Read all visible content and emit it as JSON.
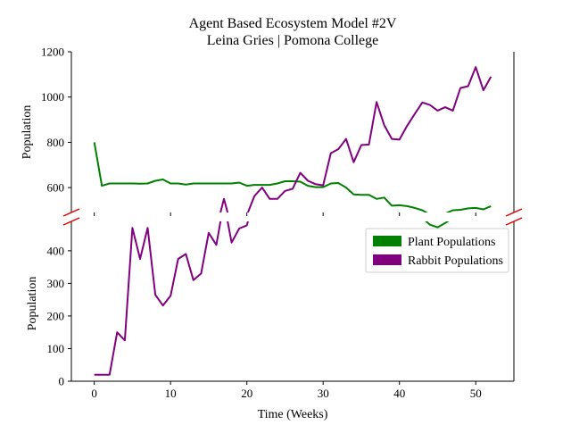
{
  "chart_data": {
    "type": "line",
    "title": "Agent Based Ecosystem Model #2V",
    "subtitle": "Leina Gries | Pomona College",
    "xlabel": "Time (Weeks)",
    "ylabel_top": "Population",
    "ylabel_bottom": "Population",
    "broken_axis": true,
    "xlim": [
      -3,
      55
    ],
    "x_ticks": [
      0,
      10,
      20,
      30,
      40,
      50
    ],
    "top_ylim": [
      490,
      1200
    ],
    "top_y_ticks": [
      600,
      800,
      1000,
      1200
    ],
    "bottom_ylim": [
      0,
      490
    ],
    "bottom_y_ticks": [
      0,
      100,
      200,
      300,
      400
    ],
    "legend_position": "upper-right of lower panel",
    "x": [
      0,
      1,
      2,
      3,
      4,
      5,
      6,
      7,
      8,
      9,
      10,
      11,
      12,
      13,
      14,
      15,
      16,
      17,
      18,
      19,
      20,
      21,
      22,
      23,
      24,
      25,
      26,
      27,
      28,
      29,
      30,
      31,
      32,
      33,
      34,
      35,
      36,
      37,
      38,
      39,
      40,
      41,
      42,
      43,
      44,
      45,
      46,
      47,
      48,
      49,
      50,
      51,
      52
    ],
    "series": [
      {
        "name": "Plant Populations",
        "color": "#008000",
        "values": [
          800,
          608,
          618,
          618,
          618,
          618,
          617,
          618,
          630,
          636,
          618,
          618,
          613,
          618,
          618,
          618,
          618,
          618,
          618,
          622,
          608,
          612,
          612,
          612,
          618,
          628,
          628,
          626,
          608,
          602,
          602,
          618,
          620,
          600,
          570,
          568,
          568,
          550,
          556,
          520,
          522,
          518,
          510,
          500,
          480,
          472,
          485,
          500,
          502,
          508,
          510,
          504,
          518
        ]
      },
      {
        "name": "Rabbit Populations",
        "color": "#800080",
        "values": [
          20,
          20,
          20,
          150,
          125,
          470,
          375,
          470,
          265,
          232,
          262,
          375,
          390,
          310,
          330,
          455,
          418,
          550,
          425,
          468,
          478,
          563,
          600,
          550,
          550,
          585,
          595,
          665,
          630,
          615,
          610,
          752,
          770,
          815,
          712,
          788,
          790,
          978,
          876,
          815,
          812,
          873,
          925,
          976,
          965,
          940,
          955,
          940,
          1040,
          1048,
          1132,
          1030,
          1090
        ]
      }
    ]
  }
}
